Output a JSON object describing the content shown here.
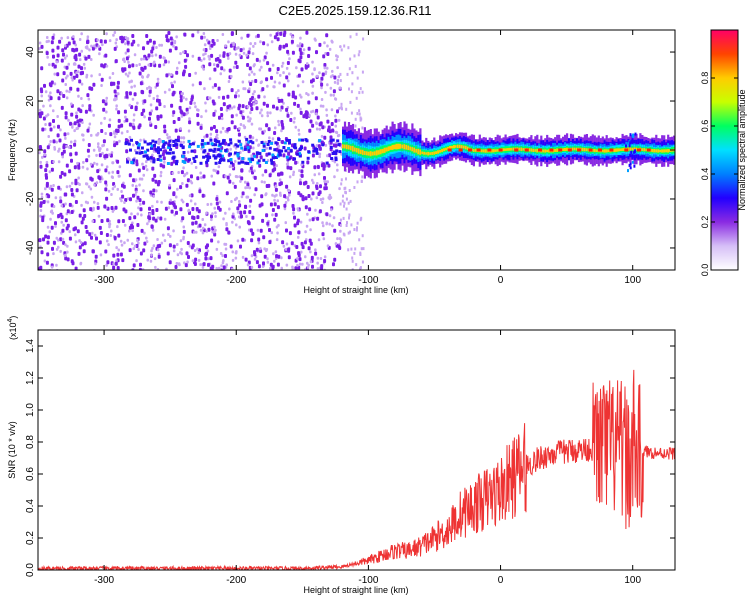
{
  "title": "C2E5.2025.159.12.36.R11",
  "colors": {
    "axis": "#000000",
    "snr_line": "#ee3333",
    "spec_noise": "#7a1ee6",
    "spec_weak": "#c8a6f2"
  },
  "chart_data": [
    {
      "type": "heatmap",
      "name": "spectrogram",
      "xlabel": "Height of straight line (km)",
      "ylabel": "Frequency (Hz)",
      "xlim": [
        -350,
        132
      ],
      "ylim": [
        -49,
        49
      ],
      "xticks": [
        -300,
        -200,
        -100,
        0,
        100
      ],
      "yticks": [
        -40,
        -20,
        0,
        20,
        40
      ],
      "colorbar": {
        "label": "Normalized spectral amplitude",
        "range": [
          0,
          1
        ],
        "ticks": [
          "0.0",
          "0.2",
          "0.4",
          "0.6",
          "0.8"
        ],
        "colormap": [
          "#ffffff",
          "#d6bff7",
          "#8a2be2",
          "#2200ff",
          "#0080ff",
          "#00e0ff",
          "#00ff60",
          "#c8ff00",
          "#ffcc00",
          "#ff4400",
          "#ff0066"
        ]
      },
      "features": {
        "noise_region_x": [
          -350,
          -122
        ],
        "carrier_frequency_hz": 0,
        "carrier_start_x": -120
      }
    },
    {
      "type": "line",
      "name": "snr",
      "xlabel": "Height of straight line (km)",
      "ylabel": "SNR (10 * v/v)",
      "exponent_label": "(x10",
      "exponent_power": "4",
      "exponent_close": ")",
      "xlim": [
        -350,
        132
      ],
      "ylim": [
        0,
        1.5
      ],
      "xticks": [
        -300,
        -200,
        -100,
        0,
        100
      ],
      "yticks": [
        "0.0",
        "0.2",
        "0.4",
        "0.6",
        "0.8",
        "1.0",
        "1.2",
        "1.4"
      ],
      "series": [
        {
          "x": [
            -350,
            -300,
            -250,
            -200,
            -150,
            -120,
            -100,
            -90,
            -80,
            -70,
            -60,
            -50,
            -40,
            -30,
            -20,
            -10,
            0,
            10,
            20,
            30,
            40,
            50,
            60,
            70,
            80,
            90,
            95,
            100,
            105,
            110,
            120,
            132
          ],
          "values": [
            0.01,
            0.01,
            0.01,
            0.01,
            0.01,
            0.02,
            0.06,
            0.09,
            0.12,
            0.12,
            0.15,
            0.2,
            0.25,
            0.35,
            0.4,
            0.45,
            0.5,
            0.58,
            0.65,
            0.7,
            0.73,
            0.74,
            0.75,
            0.76,
            0.77,
            0.75,
            0.7,
            0.72,
            0.72,
            0.74,
            0.73,
            0.73
          ]
        }
      ]
    }
  ]
}
